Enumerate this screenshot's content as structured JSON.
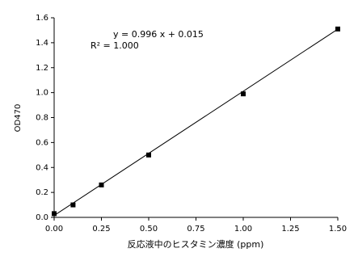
{
  "chart_data": {
    "type": "scatter",
    "x_label": "反応液中のヒスタミン濃度 (ppm)",
    "y_label": "OD470",
    "annotations": [
      "y = 0.996 x + 0.015",
      "R² = 1.000"
    ],
    "x": [
      0,
      0.1,
      0.25,
      0.5,
      1.0,
      1.5
    ],
    "values": [
      0.03,
      0.1,
      0.26,
      0.5,
      0.99,
      1.51
    ],
    "color": "#000000",
    "trendline": {
      "slope": 0.996,
      "intercept": 0.015
    },
    "xlim": [
      0,
      1.5
    ],
    "xticks": [
      {
        "value": 0,
        "label": "0.00"
      },
      0.25,
      {
        "value": 0.5,
        "label": "0.50"
      },
      0.75,
      {
        "value": 1,
        "label": "1.00"
      },
      1.25,
      {
        "value": 1.5,
        "label": "1.50"
      }
    ],
    "ylim": [
      0,
      1.6
    ],
    "yticks": [
      {
        "value": 0,
        "label": "0.0"
      },
      0.2,
      0.4,
      0.6,
      0.8,
      {
        "value": 1,
        "label": "1.0"
      },
      1.2,
      1.4,
      1.6
    ],
    "grid": false
  }
}
